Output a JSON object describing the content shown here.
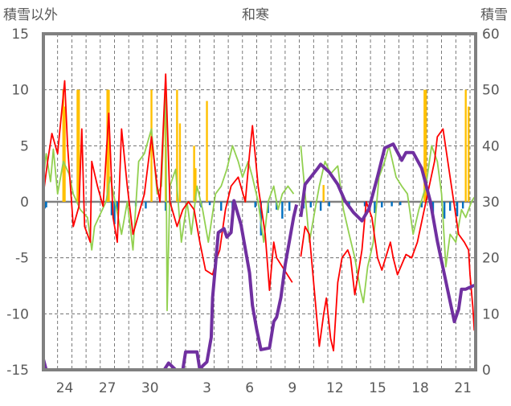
{
  "chart_data": {
    "type": "line",
    "title": "和寒",
    "left_axis_label": "積雪以外",
    "right_axis_label": "積雪",
    "ylim_left": [
      -15,
      15
    ],
    "ylim_right": [
      0,
      60
    ],
    "yticks_left": [
      "15",
      "10",
      "5",
      "0",
      "-5",
      "-10",
      "-15"
    ],
    "yticks_right": [
      "60",
      "50",
      "40",
      "30",
      "20",
      "10",
      "0"
    ],
    "x_range_days": [
      0,
      30.4
    ],
    "xtick_labels": [
      {
        "day": 1.5,
        "label": "24"
      },
      {
        "day": 4.5,
        "label": "27"
      },
      {
        "day": 7.5,
        "label": "30"
      },
      {
        "day": 11.5,
        "label": "3"
      },
      {
        "day": 14.5,
        "label": "6"
      },
      {
        "day": 17.5,
        "label": "9"
      },
      {
        "day": 20.5,
        "label": "12"
      },
      {
        "day": 23.5,
        "label": "15"
      },
      {
        "day": 26.5,
        "label": "18"
      },
      {
        "day": 29.5,
        "label": "21"
      }
    ],
    "grid": "dashed, daily vertical + every 5 horizontal",
    "colors": {
      "red": "#ff0000",
      "green": "#92d050",
      "orange": "#ffc000",
      "blue": "#0070c0",
      "purple": "#7030a0",
      "frame": "#808080"
    },
    "series": [
      {
        "name": "red",
        "axis": "left",
        "points": [
          [
            0,
            0.7
          ],
          [
            0.3,
            3.6
          ],
          [
            0.6,
            6.1
          ],
          [
            1,
            4.3
          ],
          [
            1.5,
            10.8
          ],
          [
            1.7,
            5
          ],
          [
            2.1,
            -2.2
          ],
          [
            2.5,
            -0.4
          ],
          [
            2.7,
            6.5
          ],
          [
            2.9,
            -2.2
          ],
          [
            3.3,
            -3.6
          ],
          [
            3.4,
            3.6
          ],
          [
            3.8,
            1.4
          ],
          [
            4.2,
            -0.4
          ],
          [
            4.6,
            7.9
          ],
          [
            4.9,
            -1.4
          ],
          [
            5.2,
            -3.6
          ],
          [
            5.5,
            6.5
          ],
          [
            5.9,
            1.4
          ],
          [
            6.3,
            -2.9
          ],
          [
            6.7,
            -1.1
          ],
          [
            7.1,
            0.7
          ],
          [
            7.6,
            5.8
          ],
          [
            8,
            1.4
          ],
          [
            8.2,
            0
          ],
          [
            8.6,
            11.4
          ],
          [
            8.9,
            0
          ],
          [
            9.4,
            -2.2
          ],
          [
            9.8,
            -0.7
          ],
          [
            10.2,
            0
          ],
          [
            10.6,
            -0.7
          ],
          [
            11,
            -3.6
          ],
          [
            11.4,
            -6.1
          ],
          [
            11.9,
            -6.5
          ],
          [
            12.2,
            -5
          ],
          [
            12.4,
            -4.3
          ],
          [
            12.8,
            -0.7
          ],
          [
            13.2,
            1.4
          ],
          [
            13.7,
            2.2
          ],
          [
            14.2,
            0
          ],
          [
            14.5,
            4.3
          ],
          [
            14.7,
            6.8
          ],
          [
            15.1,
            1.4
          ],
          [
            15.6,
            -2.9
          ],
          [
            15.9,
            -7.9
          ],
          [
            16.2,
            -3.6
          ],
          [
            16.4,
            -5
          ],
          [
            16.8,
            -5.8
          ],
          [
            17.5,
            -7.2
          ],
          null,
          [
            18.1,
            -4.9
          ],
          [
            18.4,
            -2.2
          ],
          [
            18.7,
            -2.9
          ],
          [
            19.1,
            -8.6
          ],
          [
            19.4,
            -12.9
          ],
          [
            19.7,
            -10.1
          ],
          [
            19.9,
            -8.6
          ],
          [
            20.2,
            -12.2
          ],
          [
            20.4,
            -13.3
          ],
          [
            20.7,
            -7.2
          ],
          [
            21,
            -5
          ],
          [
            21.4,
            -4.3
          ],
          [
            21.6,
            -5
          ],
          [
            21.9,
            -8.3
          ],
          [
            22.4,
            -4.3
          ],
          [
            22.7,
            0
          ],
          [
            23.1,
            -1.4
          ],
          [
            23.5,
            -5
          ],
          [
            23.8,
            -6.1
          ],
          [
            24.4,
            -3.6
          ],
          [
            24.6,
            -5
          ],
          [
            24.9,
            -6.5
          ],
          [
            25.5,
            -4.7
          ],
          [
            25.9,
            -5
          ],
          [
            26.3,
            -3.6
          ],
          [
            26.9,
            0
          ],
          [
            27.5,
            3.6
          ],
          [
            27.7,
            5.8
          ],
          [
            28.1,
            6.5
          ],
          [
            28.6,
            2.2
          ],
          [
            29.2,
            -2.9
          ],
          [
            29.6,
            -3.6
          ],
          [
            29.9,
            -4.3
          ],
          [
            30,
            -6.5
          ],
          [
            30.2,
            -9.4
          ],
          [
            30.3,
            -11.5
          ]
        ]
      },
      {
        "name": "green",
        "axis": "left",
        "points": [
          [
            0,
            2.2
          ],
          [
            0.2,
            4.3
          ],
          [
            0.5,
            1.8
          ],
          [
            0.7,
            4.7
          ],
          [
            1,
            0.7
          ],
          [
            1.4,
            3.6
          ],
          [
            1.8,
            2.5
          ],
          [
            2.1,
            0.7
          ],
          [
            2.6,
            -0.7
          ],
          [
            3.1,
            -1.4
          ],
          [
            3.4,
            -4.3
          ],
          [
            3.6,
            -2.2
          ],
          [
            4,
            -1.1
          ],
          [
            4.4,
            0
          ],
          [
            4.7,
            2.2
          ],
          [
            5.1,
            -0.4
          ],
          [
            5.5,
            -2.9
          ],
          [
            5.9,
            0
          ],
          [
            6.3,
            -4.3
          ],
          [
            6.7,
            3.6
          ],
          [
            7.1,
            4.3
          ],
          [
            7.6,
            6.5
          ],
          [
            8,
            0.7
          ],
          [
            8.3,
            1.4
          ],
          [
            8.6,
            10.4
          ],
          [
            8.7,
            -9.7
          ],
          [
            8.9,
            1.4
          ],
          [
            9.3,
            2.9
          ],
          [
            9.7,
            -3.6
          ],
          [
            10.1,
            0
          ],
          [
            10.4,
            -2.9
          ],
          [
            10.8,
            1.4
          ],
          [
            11.2,
            -0.7
          ],
          [
            11.6,
            -3.6
          ],
          [
            12.1,
            0.7
          ],
          [
            12.5,
            1.4
          ],
          [
            12.9,
            2.9
          ],
          [
            13.3,
            5
          ],
          [
            13.7,
            3.6
          ],
          [
            14,
            2.2
          ],
          [
            14.4,
            3.6
          ],
          [
            14.7,
            2.2
          ],
          [
            15.1,
            0
          ],
          [
            15.5,
            -3.6
          ],
          [
            15.8,
            0
          ],
          [
            16.2,
            1.4
          ],
          [
            16.5,
            -0.7
          ],
          [
            16.8,
            0.7
          ],
          [
            17.2,
            1.4
          ],
          [
            17.6,
            0.7
          ],
          null,
          [
            18.1,
            5
          ],
          [
            18.3,
            2.2
          ],
          [
            18.7,
            -3.6
          ],
          [
            19.1,
            -0.7
          ],
          [
            19.4,
            1.4
          ],
          [
            19.8,
            3.6
          ],
          [
            20.2,
            2.5
          ],
          [
            20.7,
            3.2
          ],
          [
            21.1,
            -0.7
          ],
          [
            21.5,
            -2.9
          ],
          [
            21.9,
            -5
          ],
          [
            22.3,
            -7.9
          ],
          [
            22.5,
            -9
          ],
          [
            22.8,
            -5.8
          ],
          [
            23.2,
            -3.6
          ],
          [
            23.6,
            2.2
          ],
          [
            24,
            3.6
          ],
          [
            24.3,
            5
          ],
          [
            24.8,
            2.2
          ],
          [
            25.2,
            1.4
          ],
          [
            25.6,
            0.7
          ],
          [
            26,
            -2.9
          ],
          [
            26.4,
            -0.7
          ],
          [
            26.9,
            1.4
          ],
          [
            27.3,
            5
          ],
          [
            27.7,
            3.6
          ],
          [
            28,
            0.7
          ],
          [
            28.3,
            -5.8
          ],
          [
            28.6,
            -2.9
          ],
          [
            29,
            -3.6
          ],
          [
            29.4,
            -0.7
          ],
          [
            29.7,
            -1.4
          ],
          [
            30.1,
            0
          ],
          [
            30.3,
            0.4
          ]
        ]
      },
      {
        "name": "purple",
        "axis": "right",
        "points": [
          [
            0,
            1.9
          ],
          [
            0.2,
            0
          ],
          [
            8.5,
            0
          ],
          [
            8.8,
            1.2
          ],
          [
            9.3,
            0
          ],
          [
            9.8,
            0
          ],
          [
            10,
            3.2
          ],
          [
            10.8,
            3.2
          ],
          [
            11,
            0
          ],
          [
            11.2,
            0.7
          ],
          [
            11.5,
            1.4
          ],
          [
            11.8,
            5.8
          ],
          [
            11.9,
            12.9
          ],
          [
            12.1,
            18.7
          ],
          [
            12.3,
            24.5
          ],
          [
            12.7,
            25.2
          ],
          [
            12.9,
            23.7
          ],
          [
            13.2,
            24.5
          ],
          [
            13.4,
            30.2
          ],
          [
            13.9,
            25.9
          ],
          [
            14.2,
            21.6
          ],
          [
            14.5,
            17.3
          ],
          [
            14.7,
            11.5
          ],
          [
            15,
            7.2
          ],
          [
            15.3,
            3.6
          ],
          [
            15.9,
            3.9
          ],
          [
            16.2,
            8.6
          ],
          [
            16.4,
            9.4
          ],
          [
            16.7,
            12.9
          ],
          [
            17,
            18.7
          ],
          [
            17.3,
            23
          ],
          [
            17.6,
            27.3
          ],
          [
            17.8,
            29.5
          ],
          null,
          [
            18.1,
            27.3
          ],
          [
            18.4,
            33.1
          ],
          [
            19.3,
            36
          ],
          [
            19.5,
            36.7
          ],
          [
            20.1,
            35.3
          ],
          [
            20.7,
            33.1
          ],
          [
            21.2,
            30.2
          ],
          [
            21.8,
            28.1
          ],
          [
            22.4,
            26.6
          ],
          [
            22.9,
            28.8
          ],
          [
            23.5,
            34.5
          ],
          [
            24,
            39.6
          ],
          [
            24.6,
            40.3
          ],
          [
            25.2,
            37.4
          ],
          [
            25.5,
            38.8
          ],
          [
            26,
            38.8
          ],
          [
            26.6,
            36
          ],
          [
            27.2,
            30.2
          ],
          [
            27.7,
            23
          ],
          [
            28.3,
            15.8
          ],
          [
            28.9,
            8.6
          ],
          [
            29.2,
            10.8
          ],
          [
            29.4,
            14.4
          ],
          [
            29.7,
            14.4
          ],
          [
            30.3,
            15.1
          ]
        ]
      }
    ],
    "bars": [
      {
        "name": "orange",
        "axis": "left",
        "points": [
          [
            1.4,
            10
          ],
          [
            1.5,
            8.5
          ],
          [
            2.4,
            10
          ],
          [
            2.5,
            10
          ],
          [
            4.5,
            10
          ],
          [
            4.6,
            10
          ],
          [
            7.6,
            10
          ],
          [
            8.6,
            10.5
          ],
          [
            9.4,
            10
          ],
          [
            9.6,
            7
          ],
          [
            10.6,
            5
          ],
          [
            10.7,
            3
          ],
          [
            11.5,
            9
          ],
          [
            14.2,
            0.5
          ],
          [
            19.7,
            1.5
          ],
          [
            26.8,
            10
          ],
          [
            26.9,
            10
          ],
          [
            29.7,
            10
          ],
          [
            29.9,
            8.5
          ]
        ]
      },
      {
        "name": "blue",
        "axis": "left",
        "points": [
          [
            0.1,
            -0.6
          ],
          [
            0.2,
            -0.5
          ],
          [
            4.8,
            -1.2
          ],
          [
            5.0,
            -2
          ],
          [
            5.2,
            -0.8
          ],
          [
            6.5,
            -0.4
          ],
          [
            7.2,
            -0.6
          ],
          [
            8.6,
            -0.8
          ],
          [
            11.1,
            -0.5
          ],
          [
            11.7,
            -0.3
          ],
          [
            12.5,
            -0.8
          ],
          [
            13.3,
            -0.6
          ],
          [
            14.9,
            -0.5
          ],
          [
            15.3,
            -3
          ],
          [
            15.8,
            -1
          ],
          [
            16.4,
            -0.7
          ],
          [
            16.8,
            -1.5
          ],
          [
            17.3,
            -0.8
          ],
          [
            18.3,
            -0.6
          ],
          [
            18.8,
            -0.5
          ],
          [
            19.5,
            -0.8
          ],
          [
            20.1,
            -0.4
          ],
          [
            21.5,
            -0.6
          ],
          [
            22.6,
            -0.4
          ],
          [
            23.3,
            -1
          ],
          [
            23.8,
            -0.5
          ],
          [
            24.5,
            -0.4
          ],
          [
            25.1,
            -0.3
          ],
          [
            26.6,
            -0.5
          ],
          [
            27.4,
            -1
          ],
          [
            28.2,
            -1.5
          ],
          [
            28.6,
            -0.8
          ],
          [
            29.1,
            -1.3
          ],
          [
            29.5,
            -0.6
          ]
        ]
      }
    ]
  }
}
